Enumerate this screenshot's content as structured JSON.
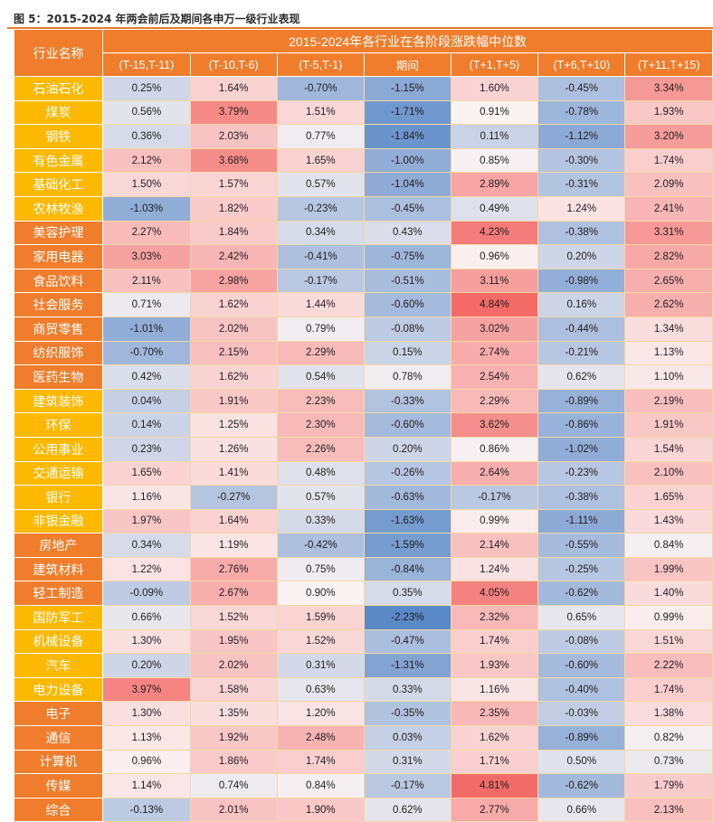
{
  "figure": {
    "title": "图 5：2015-2024 年两会前后及期间各申万一级行业表现"
  },
  "chart_data": {
    "type": "heatmap",
    "title": "2015-2024年各行业在各阶段涨跌幅中位数",
    "row_header": "行业名称",
    "columns": [
      "(T-15,T-11)",
      "(T-10,T-6)",
      "(T-5,T-1)",
      "期间",
      "(T+1,T+5)",
      "(T+6,T+10)",
      "(T+11,T+15)"
    ],
    "unit": "%",
    "rows": [
      {
        "name": "石油石化",
        "group": "gold",
        "values": [
          0.25,
          1.64,
          -0.7,
          -1.15,
          1.6,
          -0.45,
          3.34
        ]
      },
      {
        "name": "煤炭",
        "group": "gold",
        "values": [
          0.56,
          3.79,
          1.51,
          -1.71,
          0.91,
          -0.78,
          1.93
        ]
      },
      {
        "name": "钢铁",
        "group": "gold",
        "values": [
          0.36,
          2.03,
          0.77,
          -1.84,
          0.11,
          -1.12,
          3.2
        ]
      },
      {
        "name": "有色金属",
        "group": "gold",
        "values": [
          2.12,
          3.68,
          1.65,
          -1.0,
          0.85,
          -0.3,
          1.74
        ]
      },
      {
        "name": "基础化工",
        "group": "gold",
        "values": [
          1.5,
          1.57,
          0.57,
          -1.04,
          2.89,
          -0.31,
          2.09
        ]
      },
      {
        "name": "农林牧渔",
        "group": "gold",
        "values": [
          -1.03,
          1.82,
          -0.23,
          -0.45,
          0.49,
          1.24,
          2.41
        ]
      },
      {
        "name": "美容护理",
        "group": "orange",
        "values": [
          2.27,
          1.84,
          0.34,
          0.43,
          4.23,
          -0.38,
          3.31
        ]
      },
      {
        "name": "家用电器",
        "group": "orange",
        "values": [
          3.03,
          2.42,
          -0.41,
          -0.75,
          0.96,
          0.2,
          2.82
        ]
      },
      {
        "name": "食品饮料",
        "group": "orange",
        "values": [
          2.11,
          2.98,
          -0.17,
          -0.51,
          3.11,
          -0.98,
          2.65
        ]
      },
      {
        "name": "社会服务",
        "group": "orange",
        "values": [
          0.71,
          1.62,
          1.44,
          -0.6,
          4.84,
          0.16,
          2.62
        ]
      },
      {
        "name": "商贸零售",
        "group": "orange",
        "values": [
          -1.01,
          2.02,
          0.79,
          -0.08,
          3.02,
          -0.44,
          1.34
        ]
      },
      {
        "name": "纺织服饰",
        "group": "orange",
        "values": [
          -0.7,
          2.15,
          2.29,
          0.15,
          2.74,
          -0.21,
          1.13
        ]
      },
      {
        "name": "医药生物",
        "group": "orange",
        "values": [
          0.42,
          1.62,
          0.54,
          0.78,
          2.54,
          0.62,
          1.1
        ]
      },
      {
        "name": "建筑装饰",
        "group": "gold",
        "values": [
          0.04,
          1.91,
          2.23,
          -0.33,
          2.29,
          -0.89,
          2.19
        ]
      },
      {
        "name": "环保",
        "group": "gold",
        "values": [
          0.14,
          1.25,
          2.3,
          -0.6,
          3.62,
          -0.86,
          1.91
        ]
      },
      {
        "name": "公用事业",
        "group": "gold",
        "values": [
          0.23,
          1.26,
          2.26,
          0.2,
          0.86,
          -1.02,
          1.54
        ]
      },
      {
        "name": "交通运输",
        "group": "gold",
        "values": [
          1.65,
          1.41,
          0.48,
          -0.26,
          2.64,
          -0.23,
          2.1
        ]
      },
      {
        "name": "银行",
        "group": "gold",
        "values": [
          1.16,
          -0.27,
          0.57,
          -0.63,
          -0.17,
          -0.38,
          1.65
        ]
      },
      {
        "name": "非银金融",
        "group": "gold",
        "values": [
          1.97,
          1.64,
          0.33,
          -1.63,
          0.99,
          -1.11,
          1.43
        ]
      },
      {
        "name": "房地产",
        "group": "orange",
        "values": [
          0.34,
          1.19,
          -0.42,
          -1.59,
          2.14,
          -0.55,
          0.84
        ]
      },
      {
        "name": "建筑材料",
        "group": "orange",
        "values": [
          1.22,
          2.76,
          0.75,
          -0.84,
          1.24,
          -0.25,
          1.99
        ]
      },
      {
        "name": "轻工制造",
        "group": "orange",
        "values": [
          -0.09,
          2.67,
          0.9,
          0.35,
          4.05,
          -0.62,
          1.4
        ]
      },
      {
        "name": "国防军工",
        "group": "gold",
        "values": [
          0.66,
          1.52,
          1.59,
          -2.23,
          2.32,
          0.65,
          0.99
        ]
      },
      {
        "name": "机械设备",
        "group": "gold",
        "values": [
          1.3,
          1.95,
          1.52,
          -0.47,
          1.74,
          -0.08,
          1.51
        ]
      },
      {
        "name": "汽车",
        "group": "gold",
        "values": [
          0.2,
          2.02,
          0.31,
          -1.31,
          1.93,
          -0.6,
          2.22
        ]
      },
      {
        "name": "电力设备",
        "group": "gold",
        "values": [
          3.97,
          1.58,
          0.63,
          0.33,
          1.16,
          -0.4,
          1.74
        ]
      },
      {
        "name": "电子",
        "group": "orange",
        "values": [
          1.3,
          1.35,
          1.2,
          -0.35,
          2.35,
          -0.03,
          1.38
        ]
      },
      {
        "name": "通信",
        "group": "orange",
        "values": [
          1.13,
          1.92,
          2.48,
          0.03,
          1.62,
          -0.89,
          0.82
        ]
      },
      {
        "name": "计算机",
        "group": "orange",
        "values": [
          0.96,
          1.86,
          1.74,
          0.31,
          1.71,
          0.5,
          0.73
        ]
      },
      {
        "name": "传媒",
        "group": "orange",
        "values": [
          1.14,
          0.74,
          0.84,
          -0.17,
          4.81,
          -0.62,
          1.79
        ]
      },
      {
        "name": "综合",
        "group": "orange",
        "values": [
          -0.13,
          2.01,
          1.9,
          0.62,
          2.77,
          0.66,
          2.13
        ]
      }
    ],
    "colors": {
      "header": "#ef7d2b",
      "industry_gold": "#fcb900",
      "industry_orange": "#ef7d2b",
      "high": "#f36a67",
      "mid": "#fbf3f3",
      "low": "#5a89c8",
      "title_rule": "#ec7a2c"
    }
  }
}
